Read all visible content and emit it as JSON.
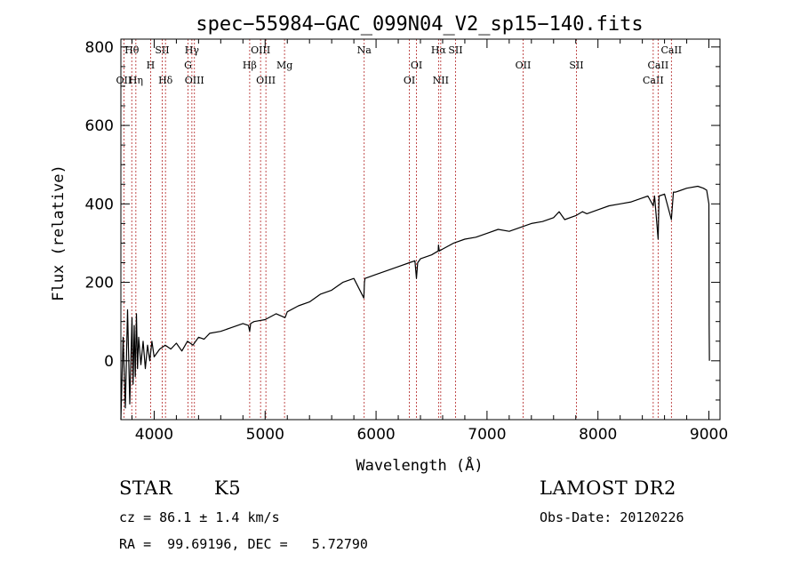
{
  "chart_data": {
    "type": "line",
    "title": "spec−55984−GAC_099N04_V2_sp15−140.fits",
    "xlabel": "Wavelength (Å)",
    "ylabel": "Flux (relative)",
    "xlim": [
      3700,
      9100
    ],
    "ylim": [
      -150,
      820
    ],
    "x_ticks": [
      4000,
      5000,
      6000,
      7000,
      8000,
      9000
    ],
    "y_ticks": [
      0,
      200,
      400,
      600,
      800
    ],
    "grid": false,
    "series": [
      {
        "color": "#000000",
        "x": [
          3700,
          3720,
          3740,
          3760,
          3780,
          3800,
          3810,
          3820,
          3830,
          3840,
          3850,
          3860,
          3880,
          3900,
          3920,
          3940,
          3960,
          3980,
          4000,
          4050,
          4100,
          4150,
          4200,
          4250,
          4300,
          4350,
          4400,
          4450,
          4500,
          4600,
          4700,
          4800,
          4850,
          4861,
          4870,
          4900,
          5000,
          5100,
          5180,
          5200,
          5300,
          5400,
          5500,
          5600,
          5700,
          5800,
          5890,
          5895,
          5900,
          6000,
          6100,
          6200,
          6300,
          6350,
          6364,
          6375,
          6400,
          6500,
          6560,
          6563,
          6570,
          6600,
          6700,
          6800,
          6900,
          7000,
          7100,
          7200,
          7300,
          7400,
          7500,
          7600,
          7650,
          7700,
          7800,
          7860,
          7900,
          8000,
          8100,
          8200,
          8300,
          8400,
          8450,
          8498,
          8510,
          8542,
          8550,
          8600,
          8662,
          8680,
          8700,
          8800,
          8900,
          8950,
          8980,
          9000,
          9002,
          9005
        ],
        "y": [
          -150,
          60,
          -120,
          130,
          -110,
          110,
          -60,
          90,
          -40,
          120,
          -20,
          60,
          -10,
          50,
          -20,
          40,
          0,
          50,
          10,
          30,
          40,
          30,
          45,
          25,
          50,
          40,
          60,
          55,
          70,
          75,
          85,
          95,
          90,
          75,
          95,
          100,
          105,
          120,
          110,
          125,
          140,
          150,
          170,
          180,
          200,
          210,
          160,
          200,
          210,
          220,
          230,
          240,
          250,
          255,
          210,
          250,
          260,
          270,
          280,
          295,
          280,
          285,
          300,
          310,
          315,
          325,
          335,
          330,
          340,
          350,
          355,
          365,
          380,
          360,
          370,
          380,
          375,
          385,
          395,
          400,
          405,
          415,
          420,
          395,
          420,
          310,
          420,
          425,
          360,
          430,
          430,
          440,
          445,
          440,
          435,
          400,
          90,
          0
        ]
      }
    ],
    "emission_lines": [
      {
        "label": "Hθ",
        "x": 3798,
        "row": 1
      },
      {
        "label": "OII",
        "x": 3727,
        "row": 3
      },
      {
        "label": "Hη",
        "x": 3835,
        "row": 3
      },
      {
        "label": "H",
        "x": 3968,
        "row": 2
      },
      {
        "label": "SII",
        "x": 4072,
        "row": 1
      },
      {
        "label": "Hδ",
        "x": 4102,
        "row": 3
      },
      {
        "label": "Hγ",
        "x": 4340,
        "row": 1
      },
      {
        "label": "G",
        "x": 4305,
        "row": 2
      },
      {
        "label": "OIII",
        "x": 4363,
        "row": 3
      },
      {
        "label": "Hβ",
        "x": 4861,
        "row": 2
      },
      {
        "label": "OIII",
        "x": 4959,
        "row": 1
      },
      {
        "label": "OIII",
        "x": 5007,
        "row": 3
      },
      {
        "label": "Mg",
        "x": 5175,
        "row": 2
      },
      {
        "label": "Na",
        "x": 5893,
        "row": 1
      },
      {
        "label": "OI",
        "x": 6300,
        "row": 3
      },
      {
        "label": "OI",
        "x": 6364,
        "row": 2
      },
      {
        "label": "Hα",
        "x": 6563,
        "row": 1
      },
      {
        "label": "NII",
        "x": 6583,
        "row": 3
      },
      {
        "label": "SII",
        "x": 6716,
        "row": 1
      },
      {
        "label": "OII",
        "x": 7325,
        "row": 2
      },
      {
        "label": "SII",
        "x": 7806,
        "row": 2
      },
      {
        "label": "CaII",
        "x": 8498,
        "row": 3
      },
      {
        "label": "CaII",
        "x": 8542,
        "row": 2
      },
      {
        "label": "CaII",
        "x": 8662,
        "row": 1
      }
    ]
  },
  "info": {
    "class_label": "STAR",
    "subclass_label": "K5",
    "survey_label": "LAMOST DR2",
    "cz_text": "cz = 86.1 ± 1.4 km/s",
    "obs_date_text": "Obs-Date: 20120226",
    "coords_text": "RA =  99.69196, DEC =   5.72790"
  }
}
